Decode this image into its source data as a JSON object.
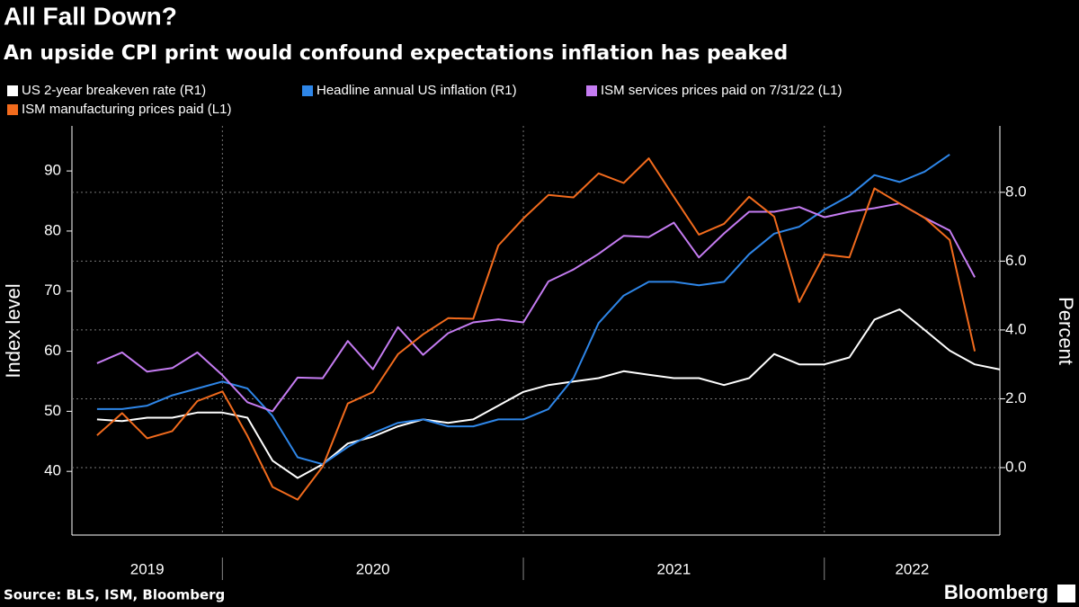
{
  "chart_data": {
    "type": "line",
    "title": "All Fall Down?",
    "subtitle": "An upside CPI print would confound expectations inflation has peaked",
    "source": "Source: BLS, ISM, Bloomberg",
    "brand": "Bloomberg",
    "ylabel": "Index level",
    "y2label": "Percent",
    "x": [
      "2019-08",
      "2019-09",
      "2019-10",
      "2019-11",
      "2019-12",
      "2020-01",
      "2020-02",
      "2020-03",
      "2020-04",
      "2020-05",
      "2020-06",
      "2020-07",
      "2020-08",
      "2020-09",
      "2020-10",
      "2020-11",
      "2020-12",
      "2021-01",
      "2021-02",
      "2021-03",
      "2021-04",
      "2021-05",
      "2021-06",
      "2021-07",
      "2021-08",
      "2021-09",
      "2021-10",
      "2021-11",
      "2021-12",
      "2022-01",
      "2022-02",
      "2022-03",
      "2022-04",
      "2022-05",
      "2022-06",
      "2022-07",
      "2022-08"
    ],
    "xlim": [
      "2019-07",
      "2022-08"
    ],
    "xticks": [
      "2020-01",
      "2021-01",
      "2022-01"
    ],
    "x_labels": [
      "2019",
      "2020",
      "2021",
      "2022"
    ],
    "ylim": [
      29.4,
      97.5
    ],
    "yticks": [
      40,
      50,
      60,
      70,
      80,
      90
    ],
    "y2lim": [
      -1.96,
      9.93
    ],
    "y2ticks": [
      {
        "value": 0,
        "label": "0.0"
      },
      {
        "value": 2,
        "label": "2.0"
      },
      {
        "value": 4,
        "label": "4.0"
      },
      {
        "value": 6,
        "label": "6.0"
      },
      {
        "value": 8,
        "label": "8.0"
      }
    ],
    "grid": true,
    "series": [
      {
        "name": "US 2-year breakeven rate (R1)",
        "color": "#ffffff",
        "axis": "y2",
        "values": [
          1.4,
          1.35,
          1.45,
          1.45,
          1.6,
          1.6,
          1.45,
          0.2,
          -0.3,
          0.1,
          0.7,
          0.9,
          1.2,
          1.4,
          1.3,
          1.4,
          1.8,
          2.2,
          2.4,
          2.5,
          2.6,
          2.8,
          2.7,
          2.6,
          2.6,
          2.4,
          2.6,
          3.3,
          3.0,
          3.0,
          3.2,
          4.3,
          4.6,
          4.0,
          3.4,
          3.0,
          2.85
        ]
      },
      {
        "name": "Headline annual US inflation (R1)",
        "color": "#2e86e8",
        "axis": "y2",
        "values": [
          1.7,
          1.7,
          1.8,
          2.1,
          2.3,
          2.5,
          2.3,
          1.5,
          0.3,
          0.1,
          0.6,
          1.0,
          1.3,
          1.4,
          1.2,
          1.2,
          1.4,
          1.4,
          1.7,
          2.6,
          4.2,
          5.0,
          5.4,
          5.4,
          5.3,
          5.4,
          6.2,
          6.8,
          7.0,
          7.5,
          7.9,
          8.5,
          8.3,
          8.6,
          9.1,
          null,
          null
        ]
      },
      {
        "name": "ISM services prices paid on 7/31/22 (L1)",
        "color": "#c57cf2",
        "values": [
          58.0,
          59.8,
          56.6,
          57.2,
          59.8,
          56.0,
          51.5,
          50.0,
          55.6,
          55.5,
          61.7,
          57.0,
          64.0,
          59.4,
          63.0,
          64.8,
          65.3,
          64.8,
          71.6,
          73.6,
          76.2,
          79.2,
          79.0,
          81.4,
          75.6,
          79.6,
          83.2,
          83.2,
          84.0,
          82.3,
          83.2,
          83.8,
          84.6,
          82.2,
          80.1,
          72.3,
          null
        ]
      },
      {
        "name": "ISM manufacturing prices paid (L1)",
        "color": "#f26b1d",
        "values": [
          46.0,
          49.7,
          45.5,
          46.7,
          51.7,
          53.3,
          45.9,
          37.4,
          35.3,
          40.8,
          51.3,
          53.2,
          59.5,
          62.8,
          65.5,
          65.4,
          77.6,
          82.1,
          86.0,
          85.6,
          89.6,
          88.0,
          92.1,
          85.7,
          79.4,
          81.2,
          85.7,
          82.4,
          68.2,
          76.1,
          75.6,
          87.1,
          84.6,
          82.2,
          78.5,
          60.0,
          null
        ]
      }
    ]
  }
}
